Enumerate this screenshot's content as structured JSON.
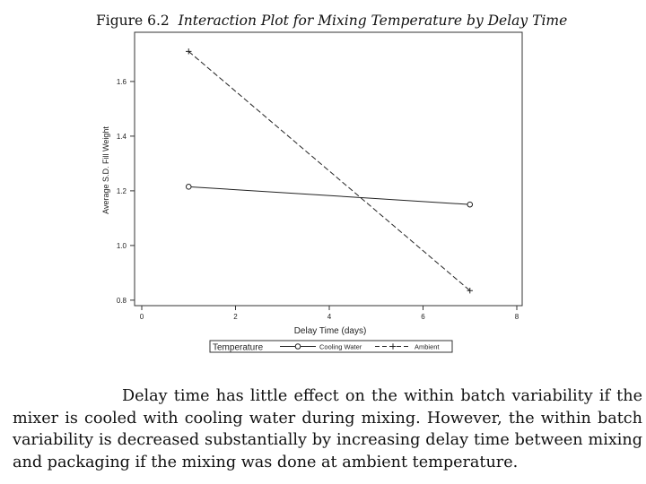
{
  "figure": {
    "number": "Figure 6.2",
    "title": "Interaction Plot for Mixing Temperature by Delay Time"
  },
  "chart_data": {
    "type": "line",
    "xlabel": "Delay Time (days)",
    "ylabel": "Average S.D. Fill Weight",
    "xlim": [
      0,
      8
    ],
    "ylim": [
      0.78,
      1.78
    ],
    "x_ticks": [
      0,
      2,
      4,
      6,
      8
    ],
    "y_ticks": [
      0.8,
      1.0,
      1.2,
      1.4,
      1.6
    ],
    "x_tick_labels": [
      "0",
      "2",
      "4",
      "6",
      "8"
    ],
    "y_tick_labels": [
      "0.8",
      "1.0",
      "1.2",
      "1.4",
      "1.6"
    ],
    "legend_title": "Temperature",
    "legend_placement": "bottom",
    "series": [
      {
        "name": "Cooling Water",
        "x": [
          1,
          7
        ],
        "y": [
          1.215,
          1.15
        ],
        "marker": "circle",
        "line": "solid"
      },
      {
        "name": "Ambient",
        "x": [
          1,
          7
        ],
        "y": [
          1.71,
          0.835
        ],
        "marker": "plus",
        "line": "dashed"
      }
    ]
  },
  "paragraph": "Delay time has little effect on the within batch variability if the mixer is cooled with cooling water during mixing. However, the within batch variability is decreased substantially by increasing delay time between mixing and packaging if the mixing was done at ambient temperature."
}
